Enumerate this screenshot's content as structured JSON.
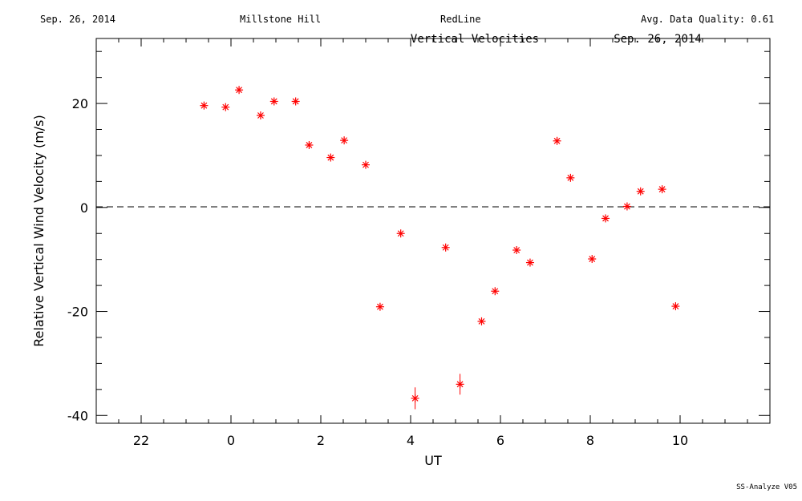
{
  "header": {
    "date": "Sep. 26, 2014",
    "site": "Millstone Hill",
    "emission": "RedLine",
    "quality": "Avg. Data Quality: 0.61"
  },
  "footer": "SS-Analyze V05",
  "chart_data": {
    "type": "scatter",
    "title": "Vertical Velocities",
    "subtitle": "Sep. 26, 2014",
    "xlabel": "UT",
    "ylabel": "Relative Vertical Wind Velocity (m/s)",
    "x_tick_labels": [
      "22",
      "0",
      "2",
      "4",
      "6",
      "8",
      "10"
    ],
    "y_tick_labels": [
      "20",
      "0",
      "-20",
      "-40"
    ],
    "xlim": [
      -3.0,
      12.0
    ],
    "ylim": [
      -41.5,
      32.5
    ],
    "zero_line": "dashed",
    "marker_color": "#ff0000",
    "series": [
      {
        "x": [
          -0.6,
          -0.12,
          0.18,
          0.66,
          0.96,
          1.44,
          1.74,
          2.22,
          2.52,
          3.0,
          3.32,
          3.78,
          4.1,
          4.78,
          5.1,
          5.58,
          5.88,
          6.36,
          6.66,
          7.26,
          7.56,
          8.04,
          8.34,
          8.82,
          9.12,
          9.6,
          9.9
        ],
        "y": [
          19.6,
          19.3,
          22.6,
          17.7,
          20.4,
          20.4,
          12.0,
          9.6,
          12.9,
          8.2,
          -19.1,
          -5.0,
          -36.7,
          -7.7,
          -34.0,
          -21.9,
          -16.1,
          -8.2,
          -10.6,
          12.8,
          5.7,
          -9.9,
          -2.1,
          0.2,
          3.1,
          3.5,
          -19.0
        ],
        "err": [
          0,
          0,
          0,
          0,
          0,
          0,
          0,
          0,
          0,
          0,
          0,
          0,
          2.1,
          0,
          2.0,
          0,
          0,
          0,
          0,
          0,
          0,
          0,
          0,
          0,
          0,
          0,
          0
        ]
      }
    ]
  }
}
